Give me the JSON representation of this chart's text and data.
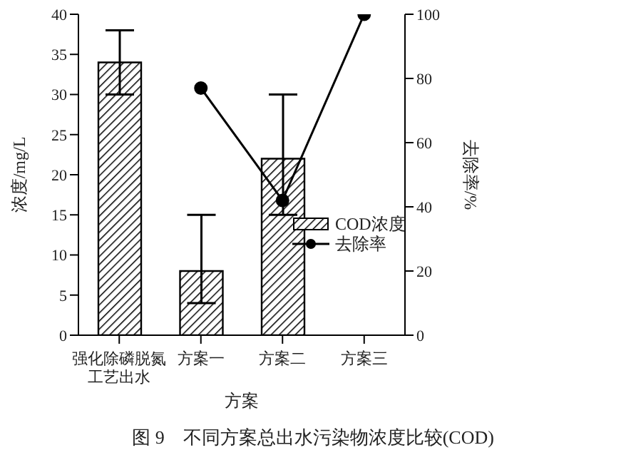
{
  "chart_data": {
    "type": "bar",
    "categories": [
      "强化除磷脱氮工艺出水",
      "方案一",
      "方案二",
      "方案三"
    ],
    "xlabel": "方案",
    "ylabel": "浓度/mg/L",
    "y2label": "去除率/%",
    "ylim": [
      0,
      40
    ],
    "yticks": [
      0,
      5,
      10,
      15,
      20,
      25,
      30,
      35,
      40
    ],
    "y2lim": [
      0,
      100
    ],
    "y2ticks": [
      0,
      20,
      40,
      60,
      80,
      100
    ],
    "series": [
      {
        "name": "COD浓度",
        "color": "#000000",
        "values": [
          34,
          8,
          22,
          null
        ],
        "errors": [
          [
            30,
            38
          ],
          [
            4,
            15
          ],
          [
            15,
            30
          ],
          null
        ]
      },
      {
        "name": "去除率",
        "type": "line",
        "axis": "y2",
        "color": "#000000",
        "values": [
          null,
          77,
          42,
          100
        ],
        "marker": "circle"
      }
    ],
    "legend": "right",
    "grid": false,
    "annotations": [
      "图 9　不同方案总出水污染物浓度比较(COD)"
    ]
  }
}
